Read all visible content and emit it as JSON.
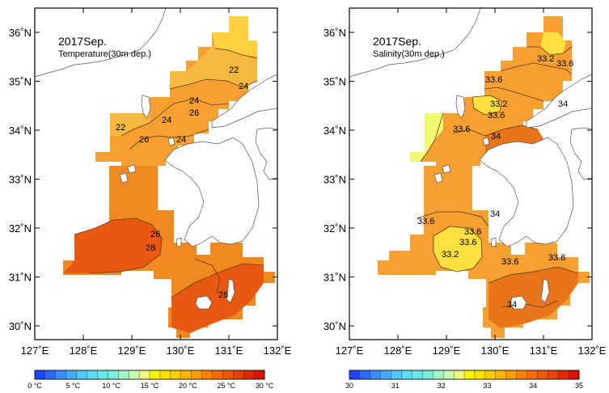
{
  "colors": {
    "land": "#ffffff",
    "coast": "#555555",
    "contour": "#5a3a1a",
    "frame": "#000000"
  },
  "panels": [
    {
      "id": "temperature",
      "title": "2017Sep.",
      "subtitle": "Temperature(30m dep.)",
      "contour_labels": [
        "22",
        "24",
        "24",
        "26",
        "22",
        "24",
        "26",
        "24",
        "26",
        "28",
        "28"
      ],
      "colorbar": {
        "colors": [
          "#1e46ff",
          "#2a6bff",
          "#3a8cff",
          "#46aaff",
          "#4ec8ff",
          "#58dcf6",
          "#64e8e8",
          "#7af0dc",
          "#a0f4c8",
          "#c8fab4",
          "#f0fa80",
          "#fff200",
          "#ffe000",
          "#ffcc00",
          "#ffb400",
          "#ff9c00",
          "#ff8000",
          "#f86a00",
          "#f05500",
          "#e84000",
          "#e02800",
          "#d81400"
        ],
        "tick_labels": [
          "0 °C",
          "5 °C",
          "10 °C",
          "15 °C",
          "20 °C",
          "25 °C",
          "30 °C"
        ]
      }
    },
    {
      "id": "salinity",
      "title": "2017Sep.",
      "subtitle": "Salinity(30m dep.)",
      "contour_labels": [
        "33.2",
        "33.6",
        "33.6",
        "33.2",
        "33.6",
        "34",
        "33.6",
        "34",
        "33.6",
        "33.6",
        "34",
        "33.6",
        "33.2",
        "33.6",
        "33.6",
        "34"
      ],
      "colorbar": {
        "colors": [
          "#1e46ff",
          "#2a6bff",
          "#3a8cff",
          "#46aaff",
          "#4ec8ff",
          "#58dcf6",
          "#64e8e8",
          "#7af0dc",
          "#a0f4c8",
          "#c8fab4",
          "#f0fa80",
          "#fff200",
          "#ffe000",
          "#ffcc00",
          "#ffb400",
          "#ff9c00",
          "#ff8000",
          "#f86a00",
          "#f05500",
          "#e84000",
          "#e02800",
          "#d81400"
        ],
        "tick_labels": [
          "30",
          "31",
          "32",
          "33",
          "34",
          "35"
        ]
      }
    }
  ],
  "axes": {
    "lon_labels": [
      "127˚E",
      "128˚E",
      "129˚E",
      "130˚E",
      "131˚E",
      "132˚E"
    ],
    "lat_labels": [
      "36˚N",
      "35˚N",
      "34˚N",
      "33˚N",
      "32˚N",
      "31˚N",
      "30˚N"
    ]
  }
}
